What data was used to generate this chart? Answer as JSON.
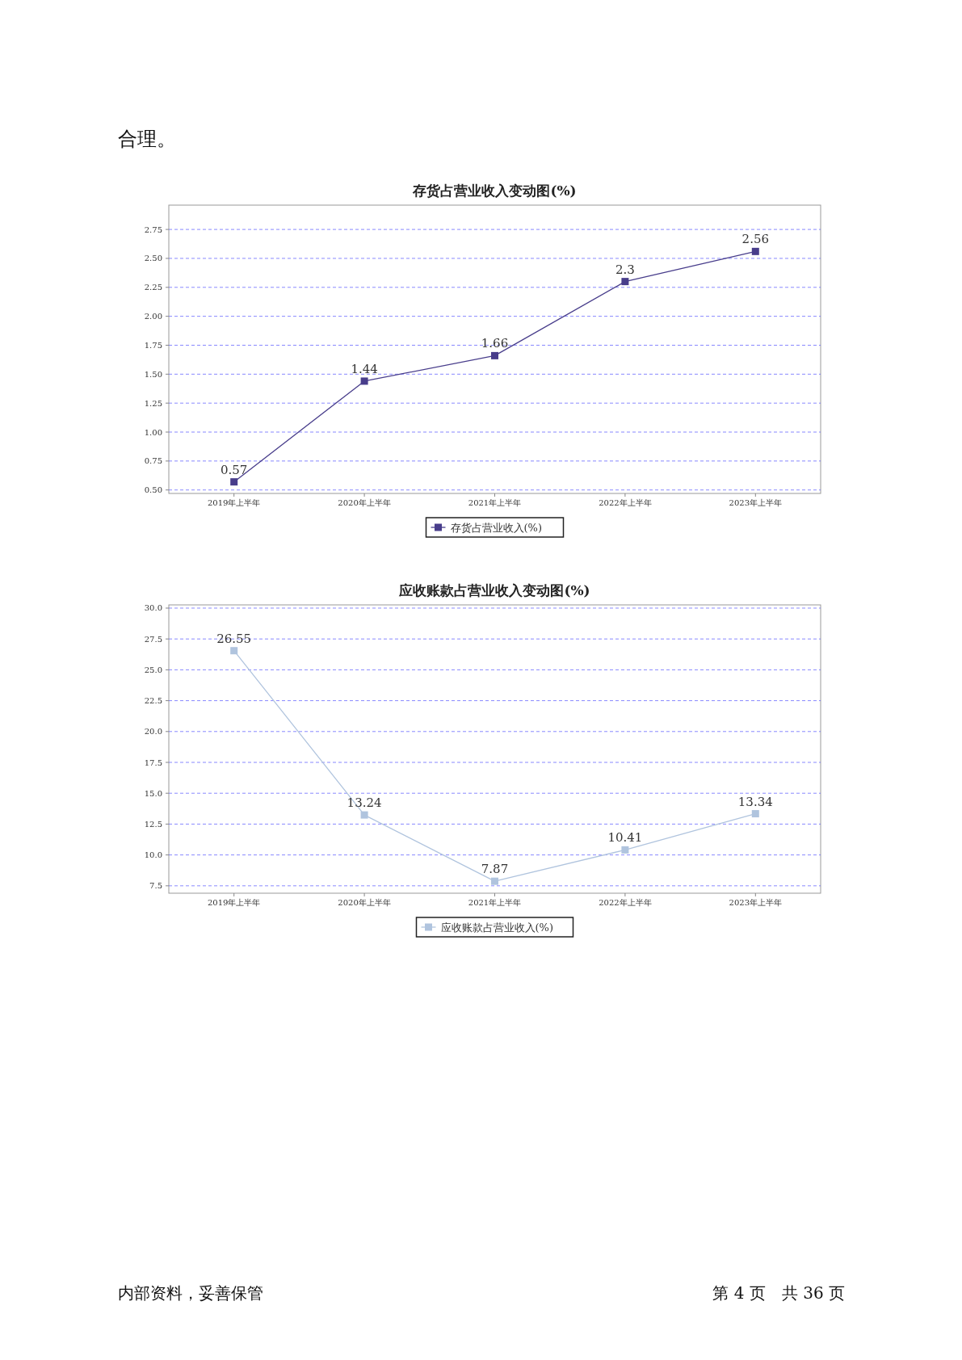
{
  "chart_data": [
    {
      "type": "line",
      "title": "存货占营业收入变动图(%)",
      "categories": [
        "2019年上半年",
        "2020年上半年",
        "2021年上半年",
        "2022年上半年",
        "2023年上半年"
      ],
      "series": [
        {
          "name": "存货占营业收入(%)",
          "color": "#483d8b",
          "values": [
            0.57,
            1.44,
            1.66,
            2.3,
            2.56
          ]
        }
      ],
      "ylim": [
        0.47,
        2.96
      ],
      "yticks": [
        {
          "value": 0.5,
          "label": "0.50"
        },
        {
          "value": 0.75,
          "label": "0.75"
        },
        {
          "value": 1,
          "label": "1.00"
        },
        {
          "value": 1.25,
          "label": "1.25"
        },
        {
          "value": 1.5,
          "label": "1.50"
        },
        {
          "value": 1.75,
          "label": "1.75"
        },
        {
          "value": 2,
          "label": "2.00"
        },
        {
          "value": 2.25,
          "label": "2.25"
        },
        {
          "value": 2.5,
          "label": "2.50"
        },
        {
          "value": 2.75,
          "label": "2.75"
        }
      ],
      "grid": "y",
      "legend": "bottom",
      "marker": "square",
      "line_style": "solid",
      "data_labels": true,
      "annotations": [
        "合理。"
      ]
    },
    {
      "type": "line",
      "title": "应收账款占营业收入变动图(%)",
      "categories": [
        "2019年上半年",
        "2020年上半年",
        "2021年上半年",
        "2022年上半年",
        "2023年上半年"
      ],
      "series": [
        {
          "name": "应收账款占营业收入(%)",
          "color": "#b0c4de",
          "values": [
            26.55,
            13.24,
            7.87,
            10.41,
            13.34
          ]
        }
      ],
      "ylim": [
        6.9,
        30.26
      ],
      "yticks": [
        {
          "value": 7.5,
          "label": "7.5"
        },
        {
          "value": 10,
          "label": "10.0"
        },
        {
          "value": 12.5,
          "label": "12.5"
        },
        {
          "value": 15,
          "label": "15.0"
        },
        {
          "value": 17.5,
          "label": "17.5"
        },
        {
          "value": 20,
          "label": "20.0"
        },
        {
          "value": 22.5,
          "label": "22.5"
        },
        {
          "value": 25,
          "label": "25.0"
        },
        {
          "value": 27.5,
          "label": "27.5"
        },
        {
          "value": 30,
          "label": "30.0"
        }
      ],
      "grid": "y",
      "legend": "bottom",
      "marker": "square",
      "line_style": "solid",
      "data_labels": true,
      "annotations": [
        "内部资料，妥善保管",
        "第 4 页　共 36 页"
      ]
    }
  ]
}
